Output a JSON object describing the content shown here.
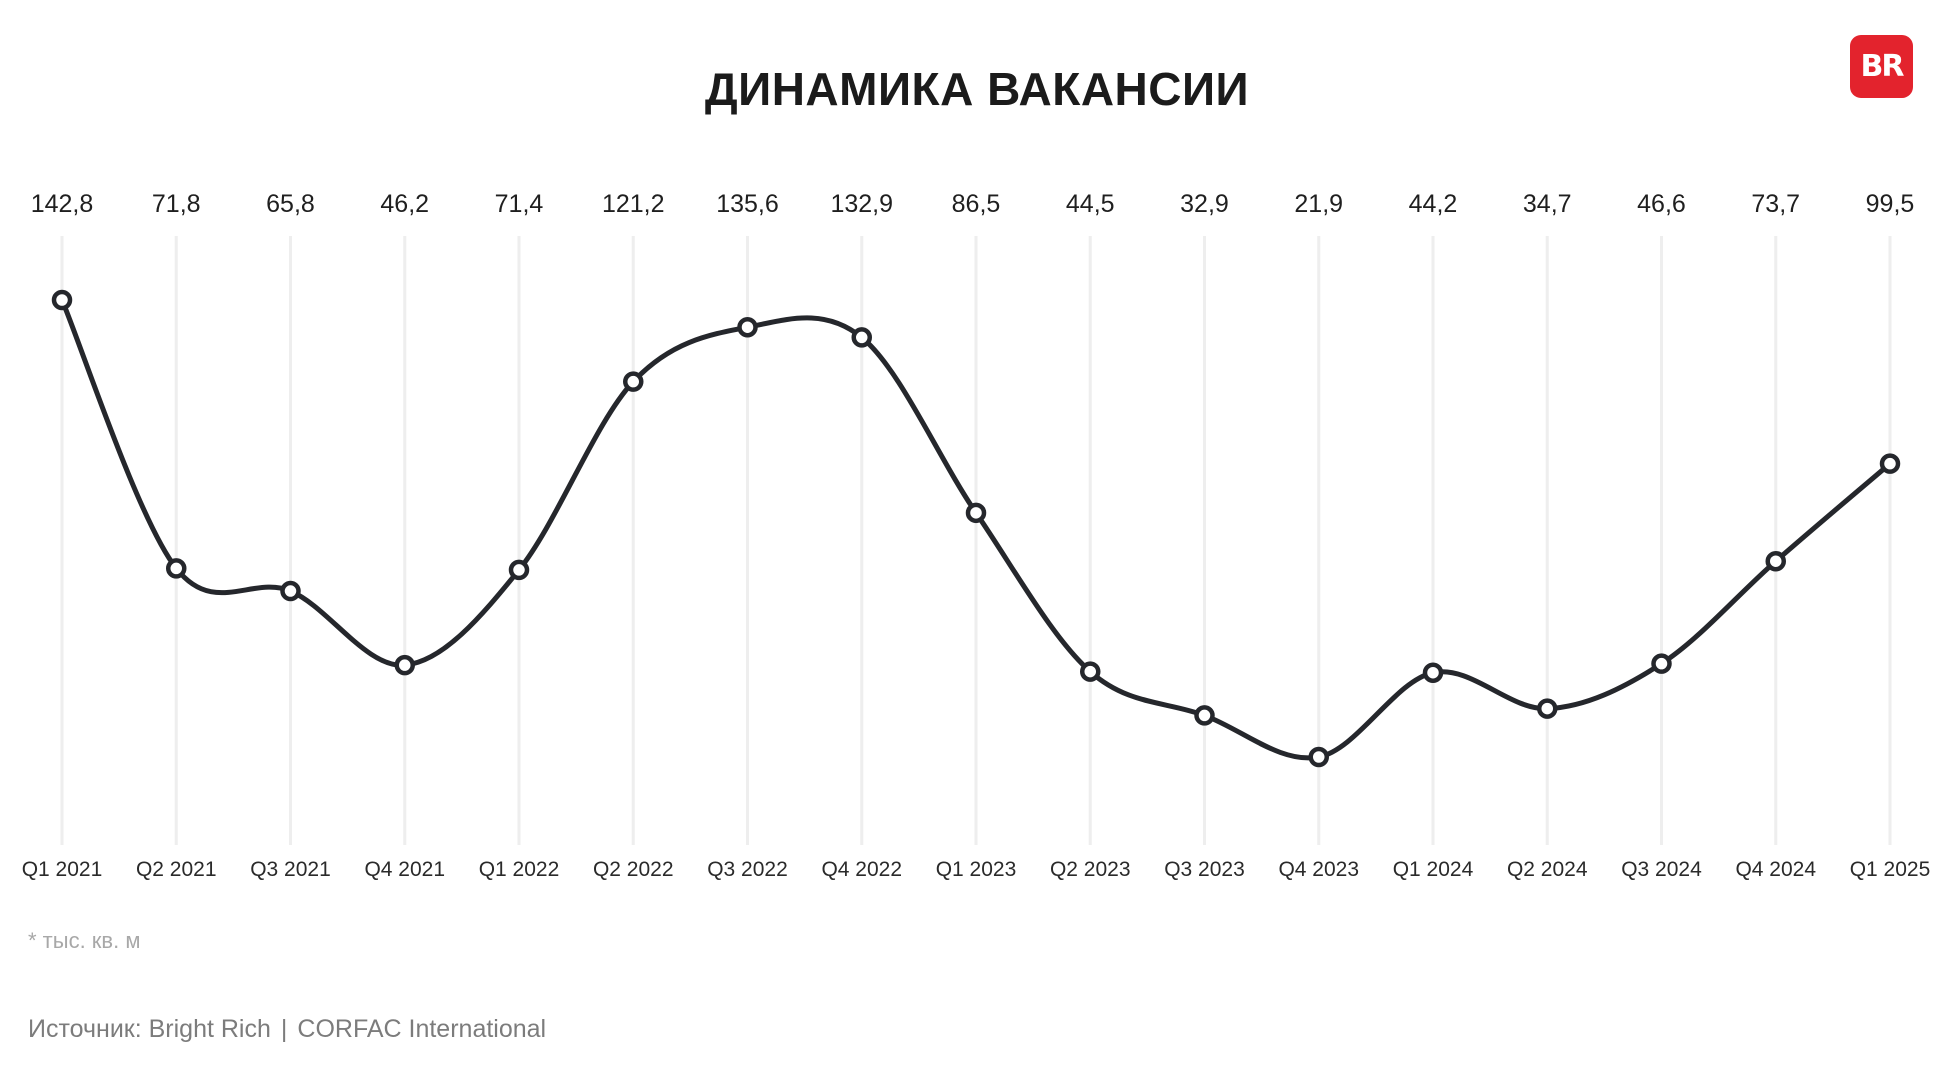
{
  "header": {
    "title": "ДИНАМИКА ВАКАНСИИ",
    "logo_text": "BR"
  },
  "chart_data": {
    "type": "line",
    "title": "ДИНАМИКА ВАКАНСИИ",
    "categories": [
      "Q1 2021",
      "Q2 2021",
      "Q3 2021",
      "Q4 2021",
      "Q1 2022",
      "Q2 2022",
      "Q3 2022",
      "Q4 2022",
      "Q1 2023",
      "Q2 2023",
      "Q3 2023",
      "Q4 2023",
      "Q1 2024",
      "Q2 2024",
      "Q3 2024",
      "Q4 2024",
      "Q1 2025"
    ],
    "values": [
      142.8,
      71.8,
      65.8,
      46.2,
      71.4,
      121.2,
      135.6,
      132.9,
      86.5,
      44.5,
      32.9,
      21.9,
      44.2,
      34.7,
      46.6,
      73.7,
      99.5
    ],
    "value_labels": [
      "142,8",
      "71,8",
      "65,8",
      "46,2",
      "71,4",
      "121,2",
      "135,6",
      "132,9",
      "86,5",
      "44,5",
      "32,9",
      "21,9",
      "44,2",
      "34,7",
      "46,6",
      "73,7",
      "99,5"
    ],
    "unit_note": "* тыс. кв. м",
    "grid": "vertical",
    "legend": "none",
    "colors": {
      "line": "#25272c",
      "grid": "#eeeeee",
      "accent": "#e3232d"
    }
  },
  "footer": {
    "footnote": "* тыс. кв. м",
    "source_label": "Источник: Bright Rich",
    "source_sep": "|",
    "source_partner": "CORFAC International"
  }
}
